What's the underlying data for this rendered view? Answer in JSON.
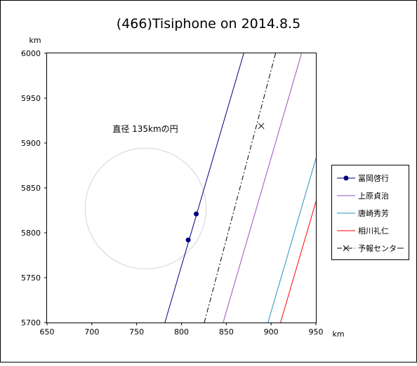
{
  "chart_data": {
    "type": "line",
    "title": "(466)Tisiphone on 2014.8.5",
    "xlabel": "km",
    "ylabel": "km",
    "xlim": [
      650,
      950
    ],
    "ylim": [
      5700,
      6000
    ],
    "x_ticks": [
      650,
      700,
      750,
      800,
      850,
      900,
      950
    ],
    "y_ticks": [
      5700,
      5750,
      5800,
      5850,
      5900,
      5950,
      6000
    ],
    "grid": false,
    "legend_position": "right",
    "annotation": "直径 135kmの円",
    "circle": {
      "center": [
        760,
        5827
      ],
      "diameter": 135,
      "color": "#d3d3d3"
    },
    "series": [
      {
        "name": "冨岡啓行",
        "color": "#000080",
        "style": "solid",
        "line": [
          [
            781.5,
            5700
          ],
          [
            869.5,
            6000
          ]
        ],
        "points": [
          [
            807.5,
            5792
          ],
          [
            816.5,
            5821
          ]
        ]
      },
      {
        "name": "上原貞治",
        "color": "#9b4ebf",
        "style": "solid",
        "line": [
          [
            846.5,
            5700
          ],
          [
            934,
            6000
          ]
        ]
      },
      {
        "name": "唐崎秀芳",
        "color": "#2a8fc0",
        "style": "solid",
        "line": [
          [
            896.5,
            5700
          ],
          [
            953,
            5893
          ]
        ]
      },
      {
        "name": "相川礼仁",
        "color": "#ff0000",
        "style": "solid",
        "line": [
          [
            910.5,
            5700
          ],
          [
            951,
            5838
          ]
        ]
      },
      {
        "name": "予報センター",
        "color": "#000000",
        "style": "dashdot",
        "line": [
          [
            825.5,
            5700
          ],
          [
            905,
            6000
          ]
        ],
        "points": [
          [
            889,
            5919
          ]
        ]
      }
    ]
  }
}
